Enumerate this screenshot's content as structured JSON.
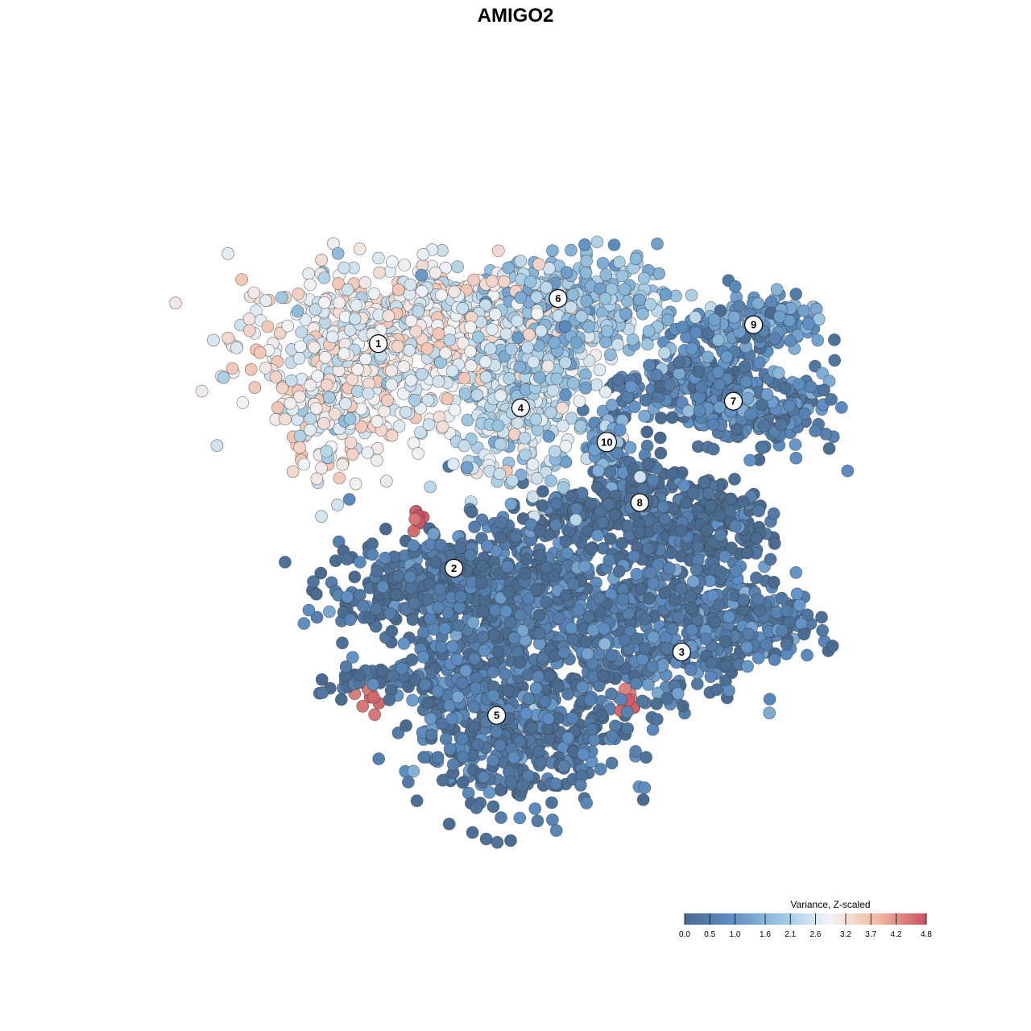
{
  "chart_data": {
    "type": "scatter",
    "title": "AMIGO2",
    "xlabel": "",
    "ylabel": "",
    "grid": false,
    "legend": {
      "title": "Variance, Z-scaled",
      "placement": "bottom-right",
      "range": [
        0.0,
        4.8
      ],
      "ticks": [
        0.0,
        0.5,
        1.0,
        1.6,
        2.1,
        2.6,
        3.2,
        3.7,
        4.2,
        4.8
      ],
      "tick_labels": [
        "0.0",
        "0.5",
        "1.0",
        "1.6",
        "2.1",
        "2.6",
        "3.2",
        "3.7",
        "4.2",
        "4.8"
      ],
      "colors": [
        "#4a6b8f",
        "#5e8fc4",
        "#9cc6e0",
        "#f1f4f7",
        "#f3b8a0",
        "#c9505f"
      ]
    },
    "xlim": [
      0,
      100
    ],
    "ylim": [
      0,
      100
    ],
    "clusters": [
      {
        "label": "1",
        "x": 29.0,
        "y": 73.3,
        "mean": 2.9
      },
      {
        "label": "2",
        "x": 39.1,
        "y": 42.5,
        "mean": 0.2
      },
      {
        "label": "3",
        "x": 69.5,
        "y": 31.0,
        "mean": 0.5
      },
      {
        "label": "4",
        "x": 48.0,
        "y": 64.5,
        "mean": 2.3
      },
      {
        "label": "5",
        "x": 44.8,
        "y": 22.3,
        "mean": 0.4
      },
      {
        "label": "6",
        "x": 53.0,
        "y": 79.5,
        "mean": 1.8
      },
      {
        "label": "7",
        "x": 76.4,
        "y": 65.4,
        "mean": 0.7
      },
      {
        "label": "8",
        "x": 63.9,
        "y": 51.5,
        "mean": 0.1
      },
      {
        "label": "9",
        "x": 79.1,
        "y": 75.9,
        "mean": 1.0
      },
      {
        "label": "10",
        "x": 59.5,
        "y": 59.8,
        "mean": 1.2
      }
    ],
    "highlights": [
      {
        "x": 34.4,
        "y": 49.7,
        "value": 4.8
      },
      {
        "x": 62.4,
        "y": 24.4,
        "value": 4.7
      },
      {
        "x": 27.9,
        "y": 24.8,
        "value": 4.6
      }
    ]
  }
}
